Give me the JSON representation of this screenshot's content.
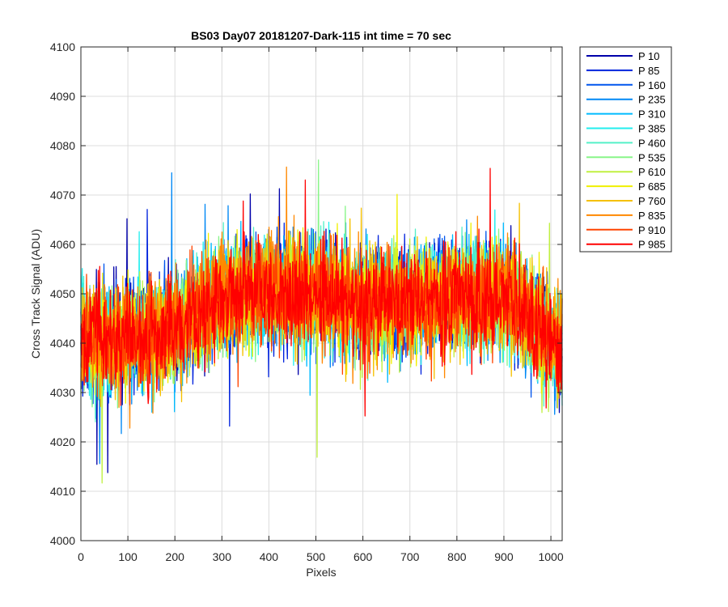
{
  "chart_data": {
    "type": "line",
    "title": "BS03 Day07 20181207-Dark-115 int time = 70 sec",
    "xlabel": "Pixels",
    "ylabel": "Cross Track Signal (ADU)",
    "xlim": [
      0,
      1024
    ],
    "ylim": [
      4000,
      4100
    ],
    "x_ticks": [
      0,
      100,
      200,
      300,
      400,
      500,
      600,
      700,
      800,
      900,
      1000
    ],
    "y_ticks": [
      4000,
      4010,
      4020,
      4030,
      4040,
      4050,
      4060,
      4070,
      4080,
      4090,
      4100
    ],
    "grid": true,
    "legend_position": "outside-right",
    "n_points_per_series": 1024,
    "baseline_profile": {
      "x": [
        0,
        100,
        200,
        300,
        400,
        500,
        600,
        700,
        800,
        900,
        1000,
        1024
      ],
      "y": [
        4040,
        4041,
        4043,
        4049,
        4051,
        4050,
        4048,
        4048,
        4049,
        4050,
        4041,
        4038
      ]
    },
    "noise_amplitude_adu": 9,
    "series": [
      {
        "name": "P 10",
        "color": "#0000aa"
      },
      {
        "name": "P 85",
        "color": "#0022dd"
      },
      {
        "name": "P 160",
        "color": "#0055ee"
      },
      {
        "name": "P 235",
        "color": "#0088f5"
      },
      {
        "name": "P 310",
        "color": "#00bbff"
      },
      {
        "name": "P 385",
        "color": "#22eeee"
      },
      {
        "name": "P 460",
        "color": "#55f0c8"
      },
      {
        "name": "P 535",
        "color": "#88f588"
      },
      {
        "name": "P 610",
        "color": "#c0f040"
      },
      {
        "name": "P 685",
        "color": "#f0f000"
      },
      {
        "name": "P 760",
        "color": "#f5c000"
      },
      {
        "name": "P 835",
        "color": "#ff8800"
      },
      {
        "name": "P 910",
        "color": "#ff4400"
      },
      {
        "name": "P 985",
        "color": "#ff0000"
      }
    ]
  }
}
